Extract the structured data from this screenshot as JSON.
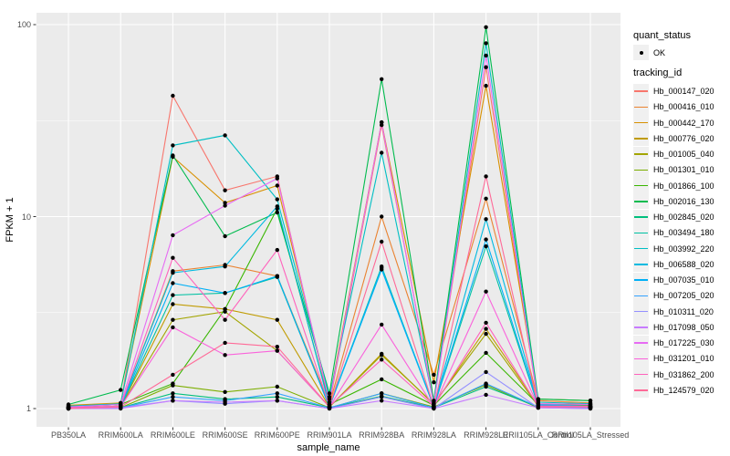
{
  "figure": {
    "background": "#FFFFFF",
    "panel_bg": "#EBEBEB",
    "grid_color": "#FFFFFF",
    "tick_label_color": "#4D4D4D",
    "marker_color": "#000000"
  },
  "chart_data": {
    "type": "line",
    "title": "",
    "xlabel": "sample_name",
    "ylabel": "FPKM + 1",
    "y_scale": "log10",
    "y_ticks": [
      1,
      10,
      100
    ],
    "y_minor_ticks": [
      3.1623,
      31.623
    ],
    "ylim": [
      0.8,
      115
    ],
    "grid": "on",
    "legend_position": "right",
    "point_marker": "black-dot",
    "categories": [
      "PB350LA",
      "RRIM600LA",
      "RRIM600LE",
      "RRIM600SE",
      "RRIM600PE",
      "RRIM901LA",
      "RRIM928BA",
      "RRIM928LA",
      "RRIM928LE",
      "RRII105LA_Control",
      "RRII105LA_Stressed"
    ],
    "series": [
      {
        "name": "Hb_000147_020",
        "color": "#F8766D",
        "values": [
          1.02,
          1.05,
          42.6,
          13.7,
          16.2,
          1.05,
          30,
          1.08,
          60,
          1.06,
          1.05
        ]
      },
      {
        "name": "Hb_000416_010",
        "color": "#EA8331",
        "values": [
          1.01,
          1.03,
          5.2,
          5.6,
          4.9,
          1.05,
          10,
          1.5,
          12.4,
          1.1,
          1.07
        ]
      },
      {
        "name": "Hb_000442_170",
        "color": "#D89000",
        "values": [
          1.04,
          1.07,
          20.5,
          11.8,
          14.5,
          1.12,
          31,
          1.37,
          48,
          1.12,
          1.1
        ]
      },
      {
        "name": "Hb_000776_020",
        "color": "#C09B00",
        "values": [
          1.0,
          1.02,
          3.5,
          3.3,
          2.9,
          1.02,
          1.93,
          1.05,
          2.6,
          1.04,
          1.03
        ]
      },
      {
        "name": "Hb_001005_040",
        "color": "#A3A500",
        "values": [
          1.01,
          1.02,
          2.9,
          3.2,
          2.0,
          1.02,
          1.9,
          1.06,
          2.45,
          1.03,
          1.02
        ]
      },
      {
        "name": "Hb_001301_010",
        "color": "#7CAE00",
        "values": [
          1.0,
          1.01,
          1.32,
          1.22,
          1.3,
          1.01,
          1.2,
          1.02,
          1.33,
          1.01,
          1.01
        ]
      },
      {
        "name": "Hb_001866_100",
        "color": "#39B600",
        "values": [
          1.02,
          1.05,
          1.35,
          3.3,
          11.0,
          1.05,
          1.42,
          1.04,
          1.95,
          1.05,
          1.04
        ]
      },
      {
        "name": "Hb_002016_130",
        "color": "#00BB4E",
        "values": [
          1.05,
          1.25,
          20.8,
          7.9,
          10.5,
          1.2,
          52,
          1.1,
          97,
          1.12,
          1.1
        ]
      },
      {
        "name": "Hb_002845_020",
        "color": "#00BF7D",
        "values": [
          1.0,
          1.01,
          1.2,
          1.12,
          1.15,
          1.01,
          1.16,
          1.01,
          1.3,
          1.02,
          1.01
        ]
      },
      {
        "name": "Hb_003494_180",
        "color": "#00C1A3",
        "values": [
          1.01,
          1.02,
          3.9,
          4.0,
          4.85,
          1.02,
          5.5,
          1.02,
          7.0,
          1.03,
          1.02
        ]
      },
      {
        "name": "Hb_003992_220",
        "color": "#00BFC4",
        "values": [
          1.03,
          1.06,
          23.5,
          26.5,
          12.3,
          1.15,
          21.5,
          1.06,
          80,
          1.08,
          1.06
        ]
      },
      {
        "name": "Hb_006588_020",
        "color": "#00BAE0",
        "values": [
          1.01,
          1.03,
          5.1,
          5.5,
          11.3,
          1.03,
          5.4,
          1.03,
          9.7,
          1.05,
          1.03
        ]
      },
      {
        "name": "Hb_007035_010",
        "color": "#00B0F6",
        "values": [
          1.0,
          1.02,
          4.5,
          4.0,
          4.9,
          1.02,
          5.3,
          1.02,
          7.6,
          1.04,
          1.02
        ]
      },
      {
        "name": "Hb_007205_020",
        "color": "#35A2FF",
        "values": [
          1.0,
          1.01,
          1.15,
          1.1,
          1.2,
          1.01,
          1.2,
          1.01,
          1.35,
          1.02,
          1.01
        ]
      },
      {
        "name": "Hb_010311_020",
        "color": "#9590FF",
        "values": [
          1.0,
          1.01,
          1.1,
          1.06,
          1.1,
          1.0,
          1.15,
          1.0,
          1.55,
          1.01,
          1.0
        ]
      },
      {
        "name": "Hb_017098_050",
        "color": "#C77CFF",
        "values": [
          1.0,
          1.0,
          1.1,
          1.08,
          1.1,
          1.0,
          1.1,
          1.0,
          1.18,
          1.01,
          1.0
        ]
      },
      {
        "name": "Hb_017225_030",
        "color": "#E76BF3",
        "values": [
          1.02,
          1.05,
          8.0,
          11.4,
          15.8,
          1.08,
          31,
          1.05,
          69,
          1.06,
          1.05
        ]
      },
      {
        "name": "Hb_031201_010",
        "color": "#FA62DB",
        "values": [
          1.01,
          1.02,
          2.65,
          1.9,
          2.0,
          1.02,
          2.74,
          1.02,
          4.07,
          1.03,
          1.02
        ]
      },
      {
        "name": "Hb_031862_200",
        "color": "#FF62BC",
        "values": [
          1.01,
          1.03,
          6.1,
          2.9,
          6.7,
          1.03,
          1.8,
          1.03,
          2.8,
          1.03,
          1.03
        ]
      },
      {
        "name": "Hb_124579_020",
        "color": "#FF6A98",
        "values": [
          1.0,
          1.02,
          1.5,
          2.2,
          2.1,
          1.02,
          7.4,
          1.02,
          16.2,
          1.02,
          1.02
        ]
      }
    ]
  },
  "legend": {
    "quant_status": {
      "title": "quant_status",
      "items": [
        {
          "label": "OK",
          "marker": "point",
          "color": "#000000"
        }
      ]
    },
    "tracking_id": {
      "title": "tracking_id"
    }
  }
}
